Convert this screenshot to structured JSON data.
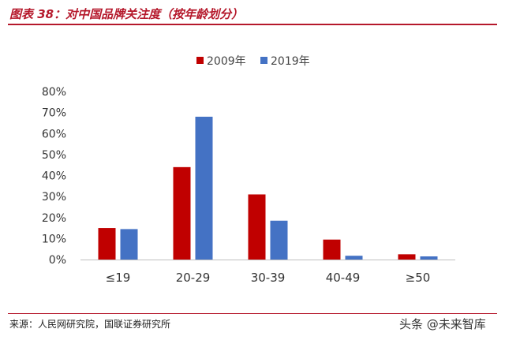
{
  "header": {
    "title": "图表 38：对中国品牌关注度（按年龄划分）"
  },
  "footer": {
    "source": "来源：人民网研究院，国联证券研究所"
  },
  "watermark": "头条 @未来智库",
  "colors": {
    "accent": "#b5182b",
    "series_2009": "#c00000",
    "series_2019": "#4472c4"
  },
  "chart_data": {
    "type": "bar",
    "title": "",
    "xlabel": "",
    "ylabel": "",
    "categories": [
      "≤19",
      "20-29",
      "30-39",
      "40-49",
      "≥50"
    ],
    "series": [
      {
        "name": "2009年",
        "values": [
          15,
          44,
          31,
          9.5,
          2.5
        ]
      },
      {
        "name": "2019年",
        "values": [
          14.5,
          68,
          18.5,
          1.8,
          1.5
        ]
      }
    ],
    "ylim": [
      0,
      80
    ],
    "yticks": [
      "0%",
      "10%",
      "20%",
      "30%",
      "40%",
      "50%",
      "60%",
      "70%",
      "80%"
    ],
    "y_format": "percent",
    "grid": false,
    "legend": "top-center"
  }
}
